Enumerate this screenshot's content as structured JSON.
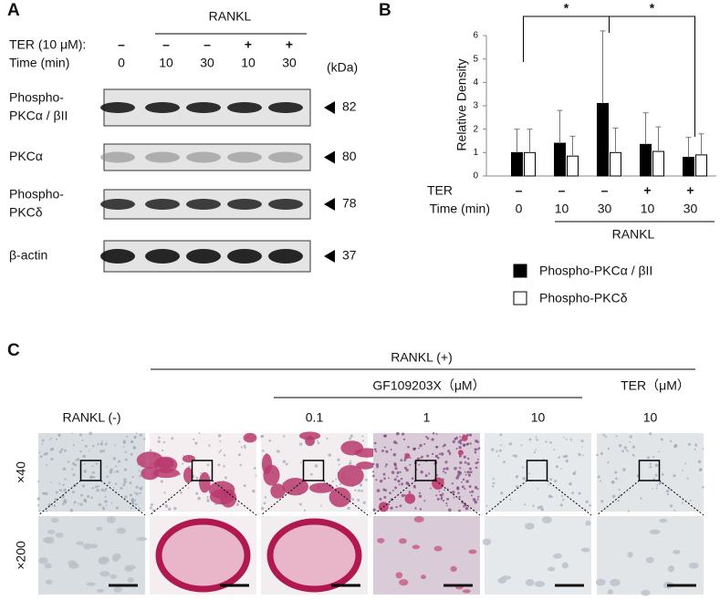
{
  "panel_a": {
    "label": "A",
    "group_label": "RANKL",
    "row_labels": [
      "TER (10 μM):",
      "Time (min)"
    ],
    "ter": [
      "–",
      "–",
      "–",
      "+",
      "+"
    ],
    "time": [
      "0",
      "10",
      "30",
      "10",
      "30"
    ],
    "unit_label": "(kDa)",
    "blots": [
      {
        "name": [
          "Phospho-",
          "PKCα / βII"
        ],
        "kda": 82
      },
      {
        "name": [
          "PKCα"
        ],
        "kda": 80
      },
      {
        "name": [
          "Phospho-",
          "PKCδ"
        ],
        "kda": 78
      },
      {
        "name": [
          "β-actin"
        ],
        "kda": 37
      }
    ]
  },
  "chart_data": {
    "type": "bar",
    "panel_label": "B",
    "ylabel": "Relative Density",
    "categories": [
      "0",
      "10",
      "30",
      "10",
      "30"
    ],
    "ter": [
      "–",
      "–",
      "–",
      "+",
      "+"
    ],
    "row_labels": [
      "TER",
      "Time (min)"
    ],
    "group_label": "RANKL",
    "ylim": [
      0,
      6
    ],
    "yticks": [
      0,
      1,
      2,
      3,
      4,
      5,
      6
    ],
    "annotations": [
      "*",
      "*"
    ],
    "series": [
      {
        "name": "Phospho-PKCα / βII",
        "color": "#000000",
        "values": [
          1.0,
          1.4,
          3.1,
          1.35,
          0.8
        ],
        "errors": [
          1.0,
          1.4,
          3.1,
          1.35,
          0.85
        ]
      },
      {
        "name": "Phospho-PKCδ",
        "color": "#ffffff",
        "values": [
          1.0,
          0.85,
          1.0,
          1.05,
          0.9
        ],
        "errors": [
          1.0,
          0.85,
          1.05,
          1.05,
          0.9
        ]
      }
    ]
  },
  "panel_c": {
    "label": "C",
    "group_label": "RANKL (+)",
    "subgroup_label": "GF109203X（μM）",
    "ter_label": "TER（μM）",
    "columns": [
      "RANKL (-)",
      null,
      "0.1",
      "1",
      "10",
      "10"
    ],
    "rows": [
      "×40",
      "×200"
    ]
  }
}
